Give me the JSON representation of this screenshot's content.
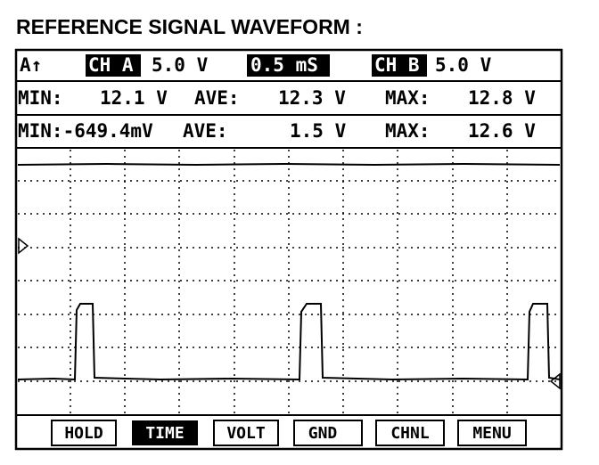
{
  "header": {
    "title": "REFERENCE SIGNAL WAVEFORM :"
  },
  "status": {
    "trigger": "A↑",
    "channel_a": "CH A",
    "channel_a_scale": "5.0 V",
    "timebase": "0.5 mS",
    "channel_b": "CH B",
    "channel_b_scale": "5.0 V"
  },
  "readings": [
    [
      "MIN:",
      "12.1 V",
      "AVE:",
      "12.3 V",
      "MAX:",
      "12.8 V"
    ],
    [
      "MIN:-649.4mV",
      "AVE:",
      "1.5 V",
      "MAX:",
      "12.6 V"
    ]
  ],
  "buttons": [
    "HOLD",
    "TIME",
    "VOLT",
    "GND",
    "CHNL",
    "MENU"
  ]
}
